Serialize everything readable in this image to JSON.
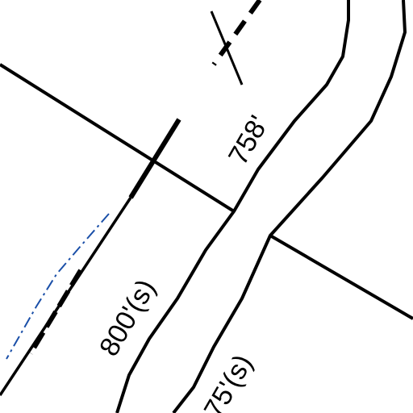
{
  "labels": {
    "road_length": "758'",
    "parcel_length": "800'(s)",
    "lower_length": "75'(s)"
  }
}
